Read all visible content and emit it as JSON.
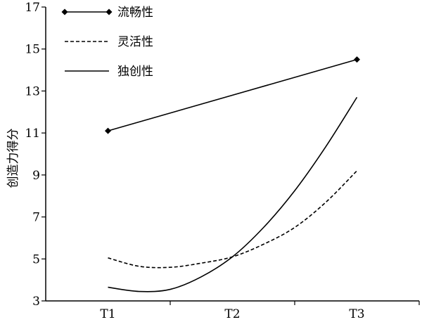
{
  "chart_data": {
    "type": "line",
    "categories": [
      "T1",
      "T2",
      "T3"
    ],
    "ylabel": "创造力得分",
    "xlabel": "",
    "ylim": [
      3,
      17
    ],
    "yticks": [
      3,
      5,
      7,
      9,
      11,
      13,
      15,
      17
    ],
    "grid": false,
    "legend_position": "top-left",
    "series": [
      {
        "name": "流畅性",
        "style": "solid-markers",
        "marker": "diamond",
        "color": "#000000",
        "x": [
          1,
          3
        ],
        "values": [
          11.1,
          14.5
        ]
      },
      {
        "name": "灵活性",
        "style": "dashed",
        "color": "#000000",
        "x": [
          1,
          1.25,
          1.5,
          1.75,
          2,
          2.25,
          2.5,
          2.75,
          3
        ],
        "values": [
          5.05,
          4.65,
          4.6,
          4.8,
          5.1,
          5.7,
          6.5,
          7.7,
          9.2
        ]
      },
      {
        "name": "独创性",
        "style": "solid",
        "color": "#000000",
        "x": [
          1,
          1.25,
          1.5,
          1.75,
          2,
          2.25,
          2.5,
          2.75,
          3
        ],
        "values": [
          3.65,
          3.45,
          3.55,
          4.15,
          5.1,
          6.5,
          8.25,
          10.35,
          12.7
        ]
      }
    ]
  }
}
